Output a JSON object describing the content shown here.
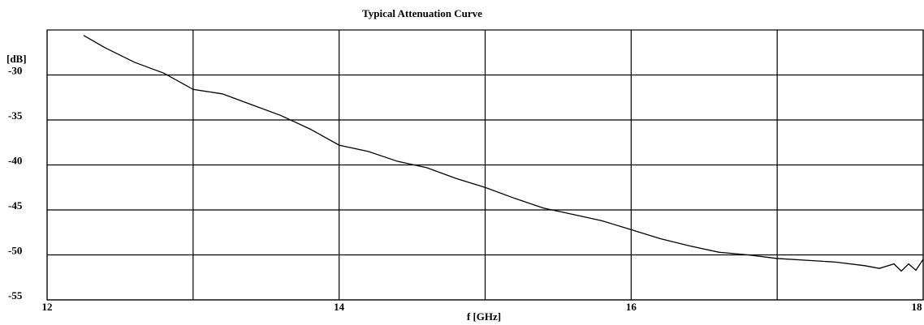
{
  "chart_data": {
    "type": "line",
    "title": "Typical Attenuation Curve",
    "xlabel": "f [GHz]",
    "ylabel": "[dB]",
    "xlim": [
      12,
      18
    ],
    "ylim": [
      -55,
      -25
    ],
    "xticks": [
      12,
      14,
      16,
      18
    ],
    "xgrid": [
      13,
      15,
      17
    ],
    "yticks": [
      -55,
      -50,
      -45,
      -40,
      -35,
      -30
    ],
    "grid": true,
    "color": "#000000",
    "x": [
      12.25,
      12.4,
      12.6,
      12.8,
      13.0,
      13.2,
      13.4,
      13.6,
      13.8,
      14.0,
      14.2,
      14.4,
      14.6,
      14.8,
      15.0,
      15.2,
      15.4,
      15.6,
      15.8,
      16.0,
      16.2,
      16.4,
      16.6,
      16.8,
      17.0,
      17.2,
      17.4,
      17.6,
      17.7,
      17.8,
      17.85,
      17.9,
      17.95,
      18.0
    ],
    "values": [
      -25.6,
      -27.0,
      -28.6,
      -29.8,
      -31.6,
      -32.1,
      -33.3,
      -34.5,
      -36.0,
      -37.8,
      -38.5,
      -39.6,
      -40.3,
      -41.5,
      -42.5,
      -43.7,
      -44.8,
      -45.5,
      -46.2,
      -47.2,
      -48.2,
      -49.0,
      -49.7,
      -50.0,
      -50.4,
      -50.6,
      -50.8,
      -51.2,
      -51.5,
      -51.0,
      -51.8,
      -51.0,
      -51.7,
      -50.5
    ]
  }
}
